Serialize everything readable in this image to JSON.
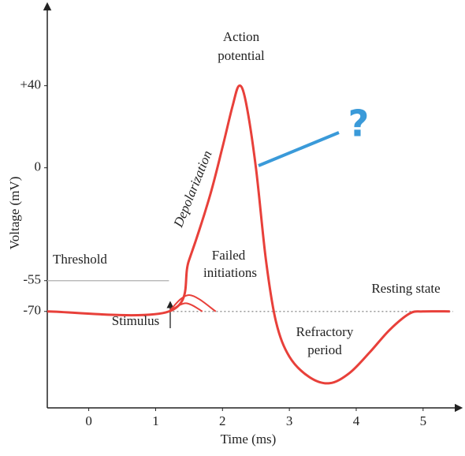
{
  "chart_data": {
    "type": "line",
    "x_label": "Time (ms)",
    "y_label": "Voltage (mV)",
    "xlim": [
      -0.62,
      5.45
    ],
    "xticks": [
      0,
      1,
      2,
      3,
      4,
      5
    ],
    "ylim": [
      -117,
      76
    ],
    "yticks": [
      -70,
      -55,
      0,
      {
        "value": 40,
        "label": "+40"
      }
    ],
    "series": [
      {
        "color": "#e8403a",
        "x": [
          -0.62,
          1.2,
          1.5,
          1.8,
          2.0,
          2.15,
          2.25,
          2.35,
          2.5,
          2.65,
          2.8,
          3.0,
          3.3,
          3.6,
          3.9,
          4.2,
          4.5,
          4.8,
          5.0,
          5.4
        ],
        "values": [
          -70,
          -70,
          -45,
          -15,
          10,
          30,
          40,
          32,
          0,
          -45,
          -75,
          -92,
          -102,
          -105,
          -100,
          -90,
          -79,
          -71,
          -70,
          -70
        ]
      },
      {
        "color": "#e8403a",
        "x": [
          1.2,
          1.5,
          1.9
        ],
        "values": [
          -70,
          -62,
          -70
        ]
      },
      {
        "color": "#e8403a",
        "x": [
          1.2,
          1.45,
          1.7
        ],
        "values": [
          -70,
          -66,
          -70
        ]
      }
    ],
    "reference_lines": [
      {
        "label": "Threshold",
        "value": -55,
        "color": "#bbbbbb"
      },
      {
        "label": "Resting state",
        "value": -70,
        "color": "#999999"
      }
    ],
    "annotations": [
      "Action",
      "potential",
      "Depolarization",
      "Failed",
      "initiations",
      "Stimulus",
      "Refractory",
      "period",
      "?"
    ]
  }
}
